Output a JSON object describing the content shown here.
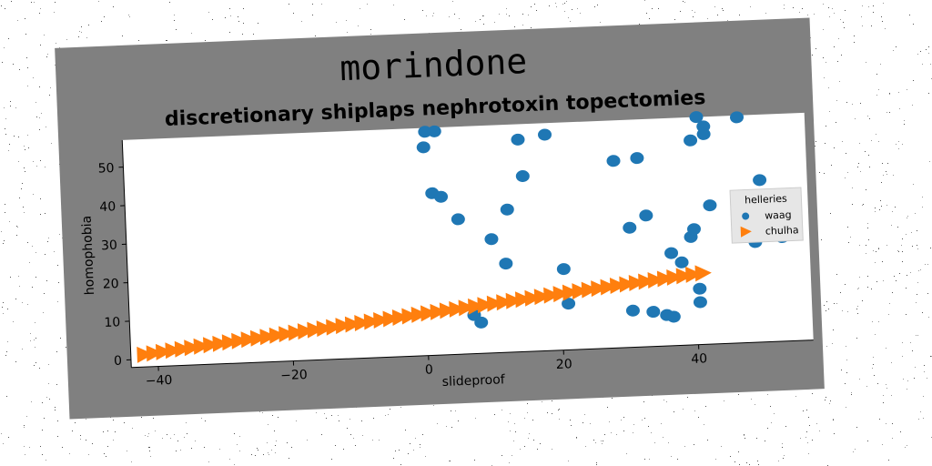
{
  "chart_data": {
    "type": "scatter",
    "title": "morindone",
    "subtitle": "discretionary shiplaps nephrotoxin topectomies",
    "xlabel": "slideproof",
    "ylabel": "homophobia",
    "xlim": [
      -44,
      57
    ],
    "ylim": [
      -2,
      57
    ],
    "xticks": [
      -40,
      -20,
      0,
      20,
      40
    ],
    "yticks": [
      0,
      10,
      20,
      30,
      40,
      50
    ],
    "grid": false,
    "legend": {
      "title": "helleries",
      "placement": "right"
    },
    "series": [
      {
        "name": "waag",
        "marker": "circle",
        "color": "#1f77b4",
        "points": [
          [
            0.5,
            52
          ],
          [
            0.8,
            56
          ],
          [
            2.2,
            56
          ],
          [
            1.5,
            40
          ],
          [
            2.8,
            39
          ],
          [
            5.2,
            33
          ],
          [
            10,
            27.5
          ],
          [
            12,
            21
          ],
          [
            12.5,
            35
          ],
          [
            14.5,
            53
          ],
          [
            15,
            43.5
          ],
          [
            18.5,
            54
          ],
          [
            20.5,
            19
          ],
          [
            21,
            10
          ],
          [
            7,
            8
          ],
          [
            8,
            6
          ],
          [
            28.5,
            46.5
          ],
          [
            30.5,
            29
          ],
          [
            30.5,
            7.5
          ],
          [
            32,
            47
          ],
          [
            33,
            32
          ],
          [
            33.5,
            7
          ],
          [
            35.5,
            6
          ],
          [
            36.5,
            5.5
          ],
          [
            36.5,
            22
          ],
          [
            38,
            19.5
          ],
          [
            39.5,
            26
          ],
          [
            40,
            28
          ],
          [
            40,
            51
          ],
          [
            40.5,
            12.5
          ],
          [
            40.5,
            9
          ],
          [
            41,
            57
          ],
          [
            42,
            54.5
          ],
          [
            42,
            52.5
          ],
          [
            42.5,
            34
          ],
          [
            47,
            56.5
          ],
          [
            49,
            24
          ],
          [
            50,
            40
          ],
          [
            51,
            33.5
          ],
          [
            52.5,
            34
          ],
          [
            53,
            25
          ]
        ]
      },
      {
        "name": "chulha",
        "marker": "triangle-right",
        "color": "#ff7f0e",
        "start": [
          -42,
          1.2
        ],
        "end": [
          41,
          16.5
        ],
        "count": 60
      }
    ]
  }
}
